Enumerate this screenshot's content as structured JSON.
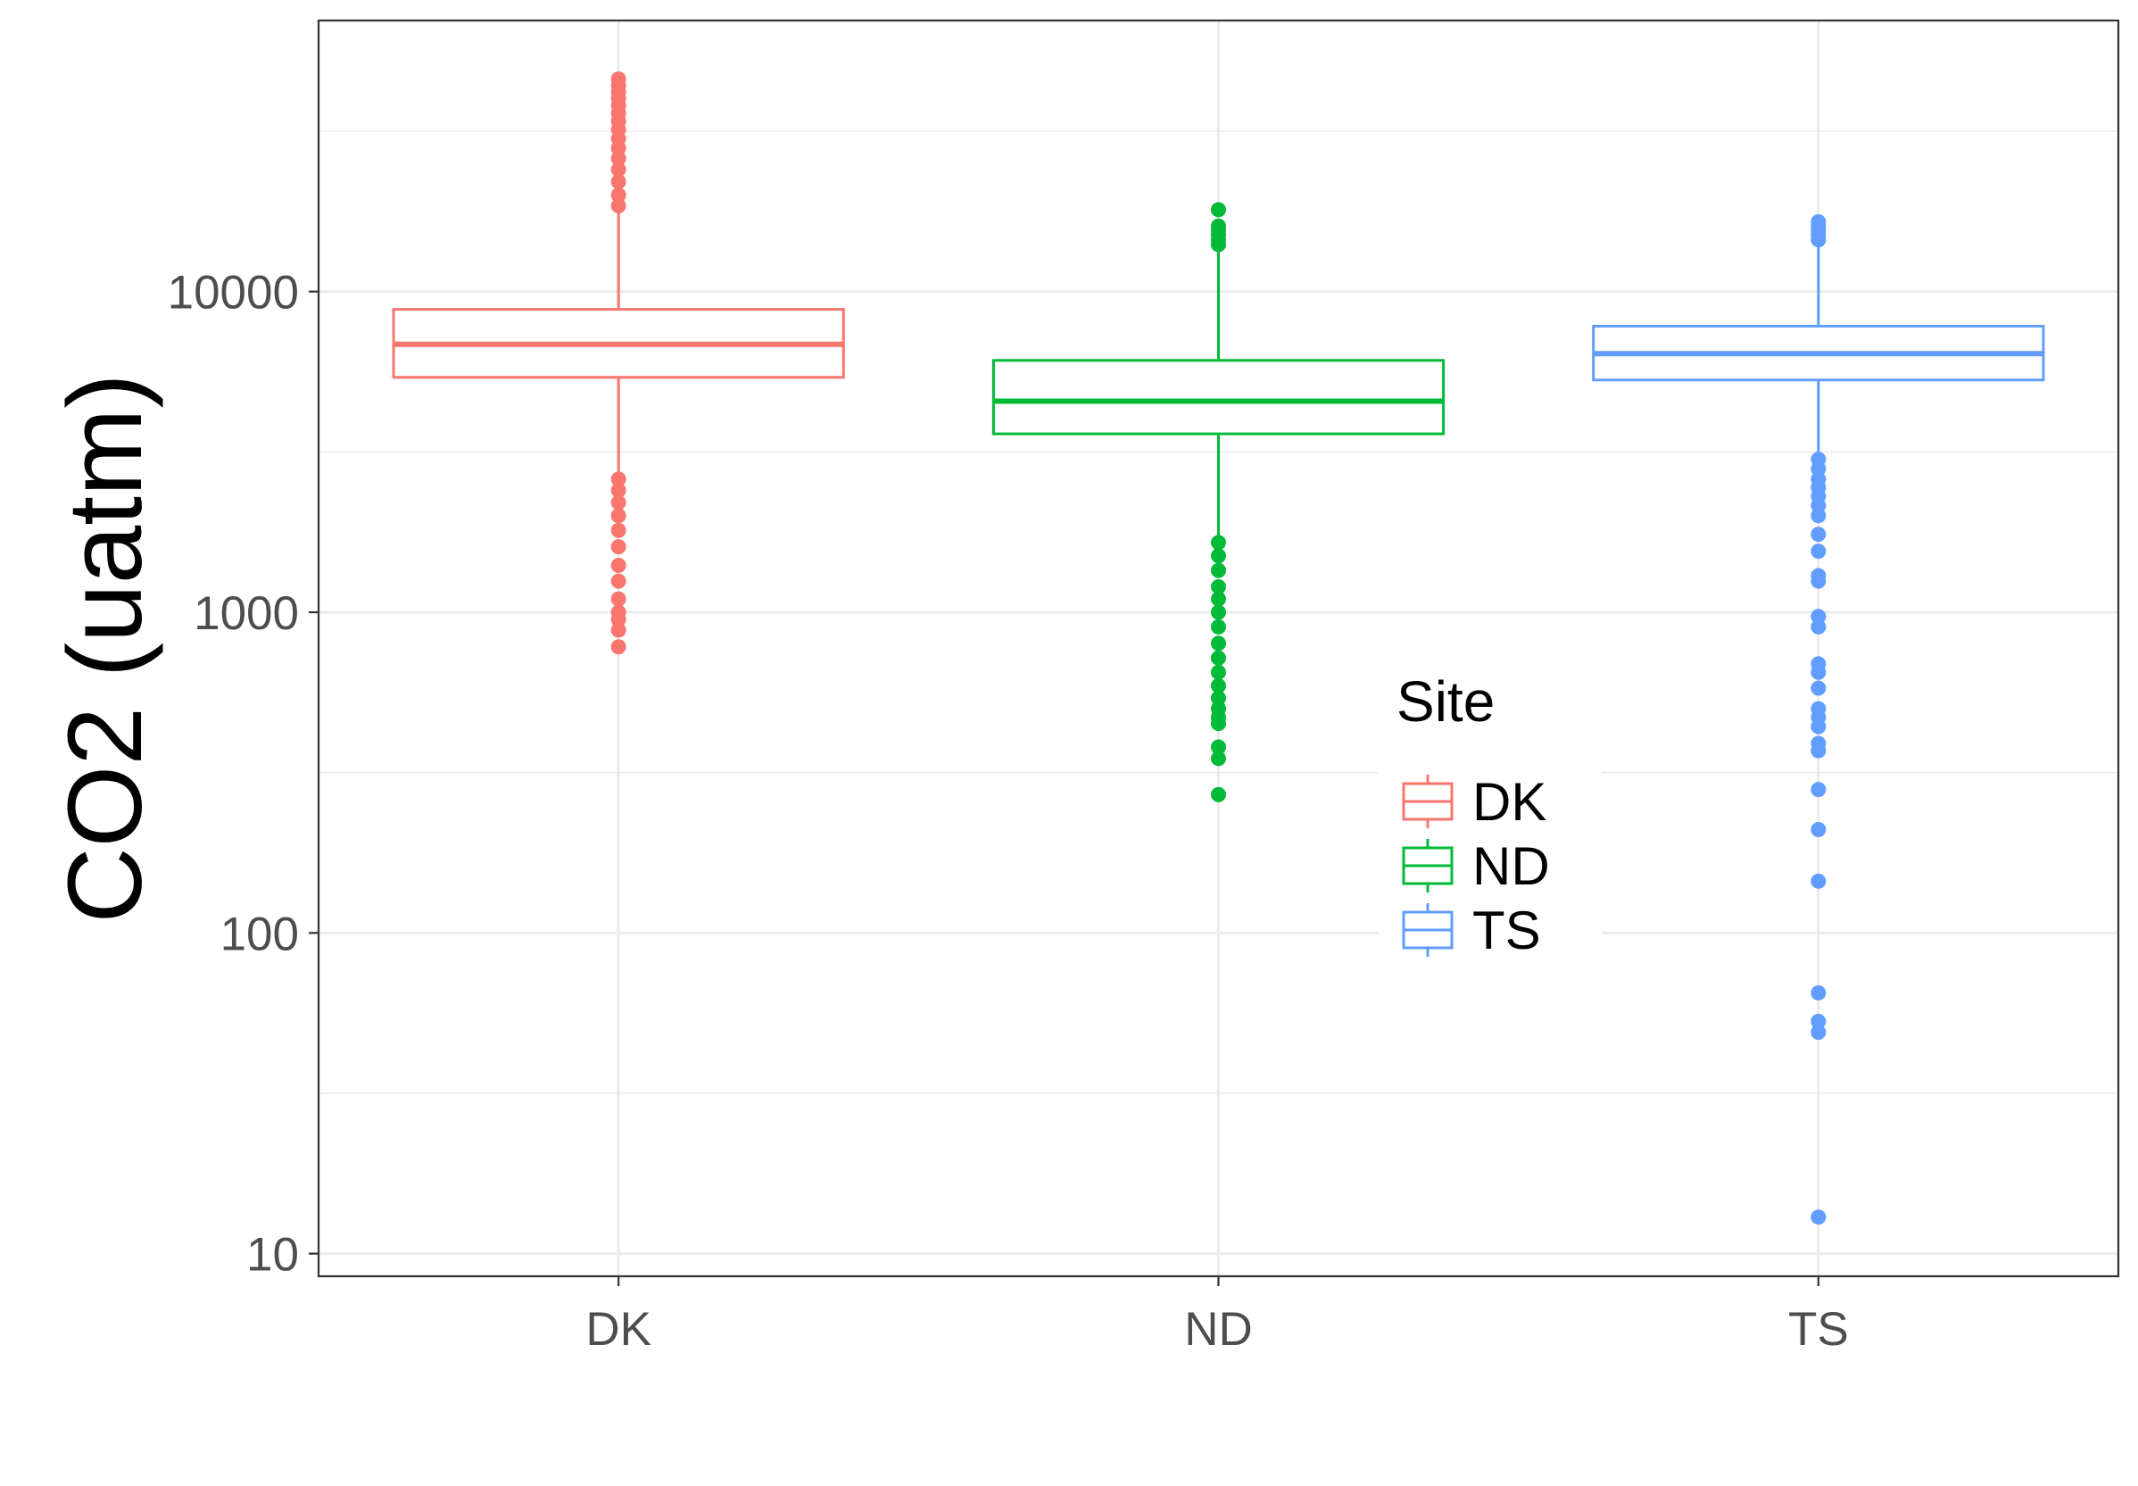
{
  "chart_data": {
    "type": "box",
    "ylabel": "CO2 (uatm)",
    "xlabel": "",
    "y_scale": "log10",
    "ylim": [
      8.5,
      70000
    ],
    "y_ticks": [
      10,
      100,
      1000,
      10000
    ],
    "y_tick_labels": [
      "10",
      "100",
      "1000",
      "10000"
    ],
    "categories": [
      "DK",
      "ND",
      "TS"
    ],
    "grid": true,
    "legend": {
      "title": "Site",
      "position": "inside-right",
      "entries": [
        "DK",
        "ND",
        "TS"
      ]
    },
    "series": [
      {
        "name": "DK",
        "color": "#F8766D",
        "q1": 5400,
        "median": 6850,
        "q3": 8800,
        "whisker_low": 2700,
        "whisker_high": 18000,
        "outliers_high": [
          18500,
          20000,
          22000,
          24000,
          26000,
          28000,
          30000,
          32000,
          34000,
          36000,
          38000,
          40000,
          42000,
          44000,
          46000
        ],
        "outliers_low": [
          2600,
          2400,
          2200,
          2000,
          1800,
          1600,
          1400,
          1250,
          1100,
          1000,
          950,
          880,
          780
        ]
      },
      {
        "name": "ND",
        "color": "#00BA38",
        "q1": 3600,
        "median": 4550,
        "q3": 6100,
        "whisker_low": 1700,
        "whisker_high": 13500,
        "outliers_high": [
          14000,
          14500,
          15000,
          15500,
          16000,
          18000
        ],
        "outliers_low": [
          1650,
          1500,
          1350,
          1200,
          1100,
          1000,
          900,
          800,
          720,
          650,
          590,
          540,
          500,
          470,
          450,
          380,
          350,
          270
        ]
      },
      {
        "name": "TS",
        "color": "#619CFF",
        "q1": 5300,
        "median": 6400,
        "q3": 7800,
        "whisker_low": 3100,
        "whisker_high": 14000,
        "outliers_high": [
          14500,
          15000,
          15500,
          16000,
          16500
        ],
        "outliers_low": [
          3000,
          2800,
          2600,
          2450,
          2300,
          2150,
          2000,
          1750,
          1550,
          1300,
          1250,
          970,
          900,
          690,
          650,
          580,
          500,
          470,
          440,
          390,
          370,
          280,
          210,
          145,
          65,
          53,
          49,
          13
        ]
      }
    ]
  }
}
